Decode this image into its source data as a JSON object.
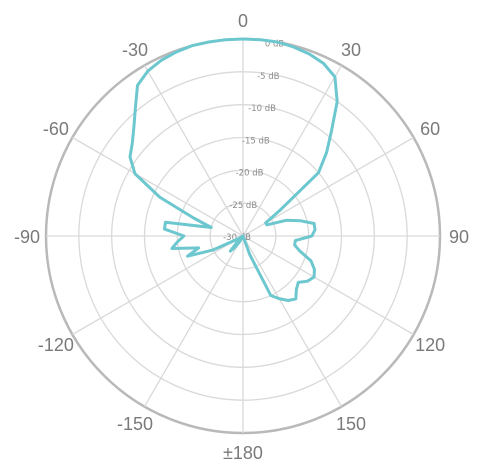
{
  "chart_data": {
    "type": "polar-line",
    "title": "",
    "angle_unit": "degrees",
    "angle_ticks": [
      0,
      30,
      60,
      90,
      120,
      150,
      180,
      -150,
      -120,
      -90,
      -60,
      -30
    ],
    "angle_tick_labels": [
      "0",
      "30",
      "60",
      "90",
      "120",
      "150",
      "±180",
      "-150",
      "-120",
      "-90",
      "-60",
      "-30"
    ],
    "radial_range_db": [
      -30,
      0
    ],
    "radial_ticks": [
      0,
      -5,
      -10,
      -15,
      -20,
      -25,
      -30
    ],
    "radial_tick_labels": [
      "0 dB",
      "-5 dB",
      "-10 dB",
      "-15 dB",
      "-20 dB",
      "-25 dB",
      "-30 dB"
    ],
    "grid": true,
    "series": [
      {
        "color": "#6cc7cf",
        "angles": [
          -180,
          -170,
          -160,
          -155,
          -150,
          -145,
          -140,
          -135,
          -130,
          -125,
          -120,
          -115,
          -110,
          -105,
          -100,
          -95,
          -90,
          -85,
          -80,
          -75,
          -70,
          -65,
          -60,
          -55,
          -50,
          -45,
          -40,
          -35,
          -30,
          -25,
          -20,
          -15,
          -10,
          -5,
          0,
          5,
          10,
          15,
          20,
          25,
          30,
          35,
          40,
          45,
          50,
          55,
          60,
          65,
          70,
          75,
          80,
          85,
          90,
          95,
          100,
          105,
          110,
          115,
          120,
          125,
          130,
          135,
          140,
          145,
          150,
          155,
          160,
          165,
          170,
          180
        ],
        "values_db": [
          -30,
          -30,
          -30,
          -30,
          -29,
          -28,
          -27,
          -29,
          -30,
          -30,
          -29,
          -25,
          -21,
          -23,
          -19,
          -20,
          -21,
          -18,
          -18,
          -25,
          -22,
          -16,
          -11,
          -9,
          -8,
          -6.5,
          -4.5,
          -2,
          -1,
          -0.5,
          -0.2,
          0,
          0,
          0,
          0,
          0,
          0,
          -0.2,
          -0.5,
          -1,
          -2,
          -5,
          -9,
          -12,
          -15,
          -23,
          -26,
          -26,
          -23,
          -21,
          -19,
          -19,
          -19.5,
          -22,
          -22,
          -21,
          -19,
          -18,
          -17.5,
          -18,
          -19,
          -18.5,
          -17.5,
          -18,
          -19,
          -20,
          -27,
          -30,
          -30,
          -30
        ]
      }
    ]
  }
}
